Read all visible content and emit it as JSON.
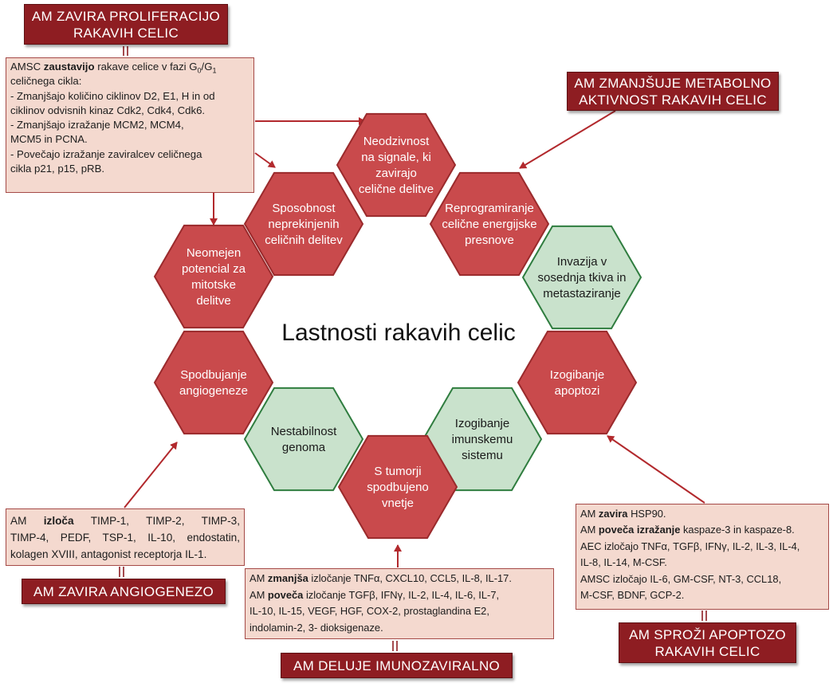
{
  "diagram": {
    "center_title": "Lastnosti rakavih celic",
    "colors": {
      "red_fill": "#c94a4c",
      "red_stroke": "#9a2a2c",
      "green_fill": "#c9e2cc",
      "green_stroke": "#2f7d3f",
      "title_box": "#8e1d22",
      "text_box": "#f4d9cf",
      "arrow": "#b2292d"
    },
    "hexagons": [
      {
        "id": "signals",
        "color": "red",
        "lines": [
          "Neodzivnost",
          "na signale, ki",
          "zavirajo",
          "celične delitve"
        ]
      },
      {
        "id": "energy",
        "color": "red",
        "lines": [
          "Reprogramiranje",
          "celične energijske",
          "presnove"
        ]
      },
      {
        "id": "invasion",
        "color": "green",
        "lines": [
          "Invazija v",
          "sosednja tkiva in",
          "metastaziranje"
        ]
      },
      {
        "id": "apoptosis",
        "color": "red",
        "lines": [
          "Izogibanje",
          "apoptozi"
        ]
      },
      {
        "id": "immune",
        "color": "green",
        "lines": [
          "Izogibanje",
          "imunskemu",
          "sistemu"
        ]
      },
      {
        "id": "inflammation",
        "color": "red",
        "lines": [
          "S tumorji",
          "spodbujeno",
          "vnetje"
        ]
      },
      {
        "id": "genome",
        "color": "green",
        "lines": [
          "Nestabilnost",
          "genoma"
        ]
      },
      {
        "id": "angiogenesis",
        "color": "red",
        "lines": [
          "Spodbujanje",
          "angiogeneze"
        ]
      },
      {
        "id": "mitotic",
        "color": "red",
        "lines": [
          "Neomejen",
          "potencial za",
          "mitotske",
          "delitve"
        ]
      },
      {
        "id": "proliferation",
        "color": "red",
        "lines": [
          "Sposobnost",
          "neprekinjenih",
          "celičnih delitev"
        ]
      }
    ]
  },
  "titles": {
    "proliferation": [
      "AM ZAVIRA PROLIFERACIJO",
      "RAKAVIH CELIC"
    ],
    "metabolism": [
      "AM ZMANJŠUJE METABOLNO",
      "AKTIVNOST RAKAVIH CELIC"
    ],
    "angiogenesis": [
      "AM ZAVIRA ANGIOGENEZO"
    ],
    "immuno": [
      "AM DELUJE IMUNOZAVIRALNO"
    ],
    "apoptosis": [
      "AM SPROŽI APOPTOZO",
      "RAKAVIH CELIC"
    ]
  },
  "boxes": {
    "proliferation": {
      "l1_a": "AMSC ",
      "l1_b": "zaustavijo",
      "l1_c": " rakave celice v fazi G",
      "l1_sub1": "0",
      "l1_d": "/G",
      "l1_sub2": "1",
      "l2": "celičnega cikla:",
      "l3": "- Zmanjšajo količino ciklinov D2, E1, H in od",
      "l4": "ciklinov odvisnih kinaz Cdk2, Cdk4, Cdk6.",
      "l5": "- Zmanjšajo izražanje MCM2, MCM4,",
      "l6": "MCM5 in PCNA.",
      "l7": "- Povečajo izražanje zaviralcev celičnega",
      "l8": "cikla p21, p15, pRB."
    },
    "angiogenesis": {
      "l1_a": "AM ",
      "l1_b": "izloča",
      "l1_c": " TIMP-1, TIMP-2, TIMP-3,",
      "l2": "TIMP-4, PEDF, TSP-1, IL-10, endostatin,",
      "l3": "kolagen XVIII, antagonist receptorja IL-1."
    },
    "immuno": {
      "l1_a": "AM ",
      "l1_b": "zmanjša",
      "l1_c": " izločanje TNFα, CXCL10, CCL5, IL-8, IL-17.",
      "l2_a": "AM ",
      "l2_b": "poveča",
      "l2_c": " izločanje TGFβ, IFNγ, IL-2, IL-4, IL-6, IL-7,",
      "l3": "IL-10, IL-15, VEGF, HGF, COX-2, prostaglandina E2,",
      "l4": "indolamin-2, 3- dioksigenaze."
    },
    "apoptosis": {
      "l1_a": "AM ",
      "l1_b": "zavira",
      "l1_c": " HSP90.",
      "l2_a": "AM ",
      "l2_b": "poveča izražanje",
      "l2_c": " kaspaze-3 in kaspaze-8.",
      "l3": "AEC izločajo TNFα, TGFβ, IFNγ, IL-2, IL-3, IL-4,",
      "l4": "IL-8, IL-14, M-CSF.",
      "l5": "AMSC izločajo IL-6, GM-CSF, NT-3, CCL18,",
      "l6": "M-CSF, BDNF, GCP-2."
    }
  }
}
